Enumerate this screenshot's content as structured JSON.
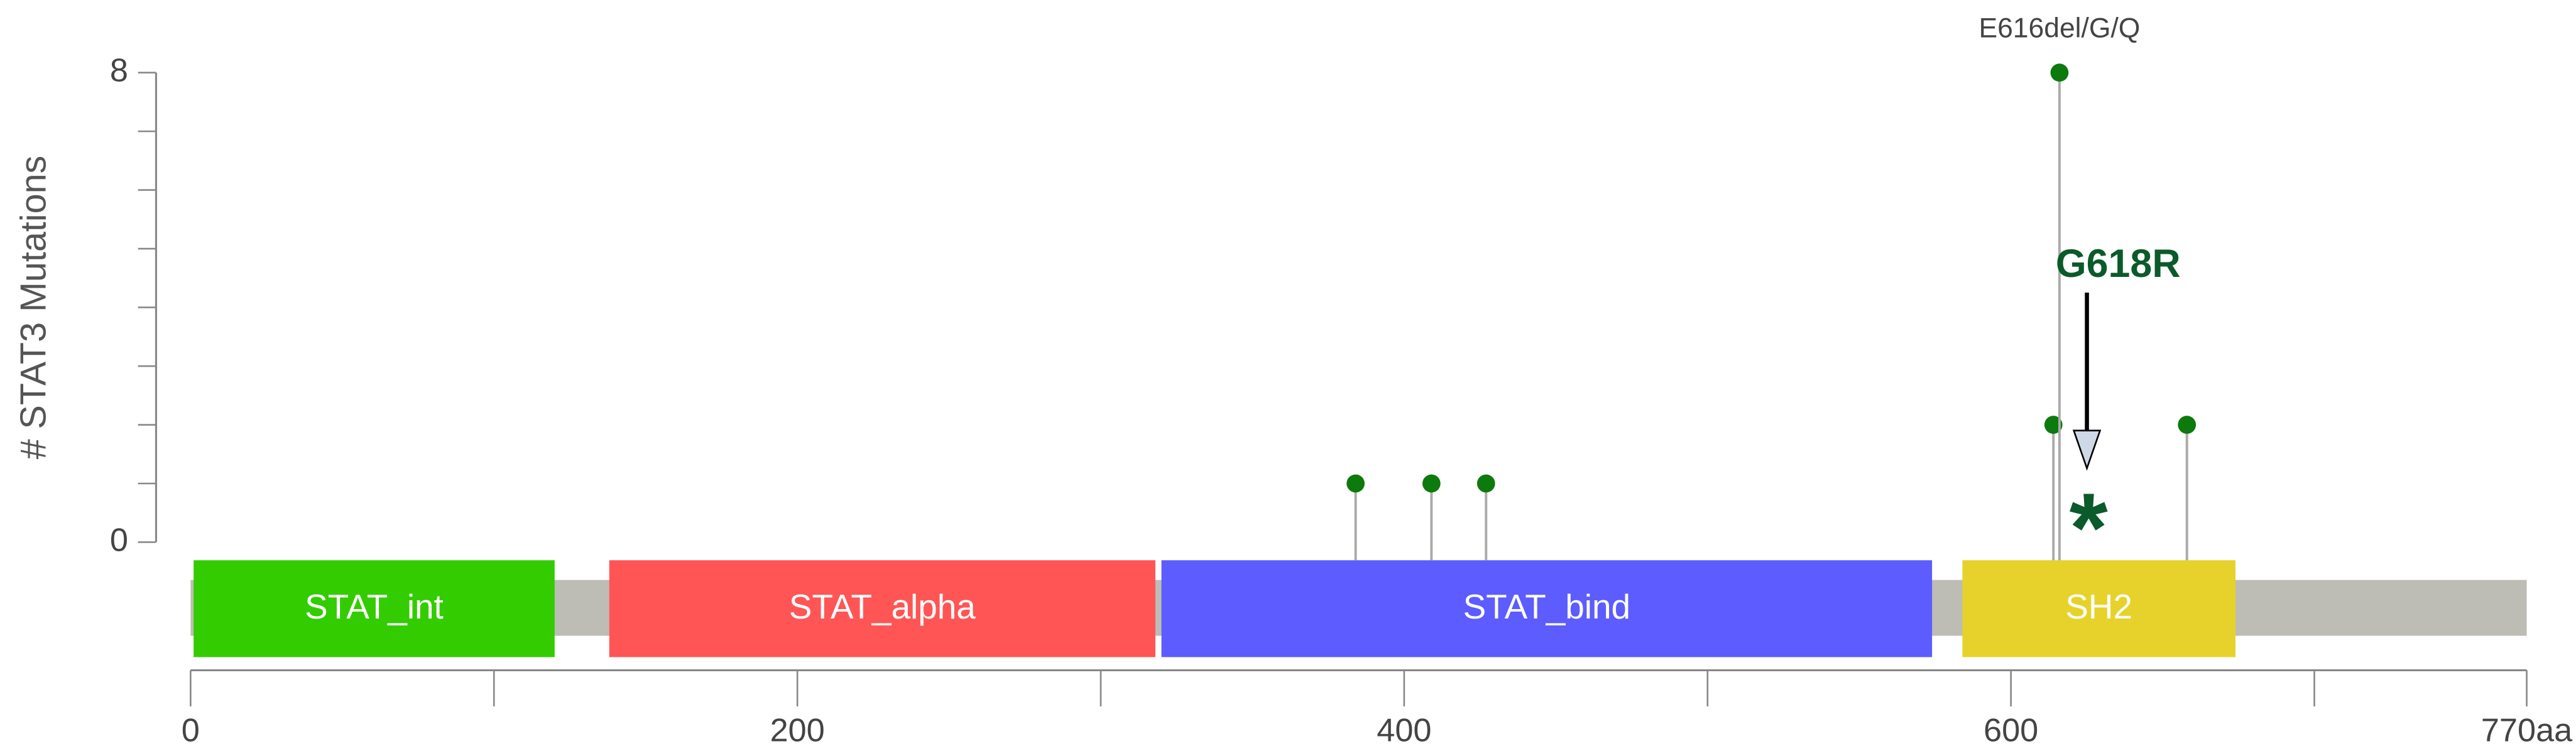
{
  "chart_data": {
    "type": "lollipop",
    "y_label": "# STAT3 Mutations",
    "xlim": [
      0,
      770
    ],
    "ylim": [
      0,
      8
    ],
    "xticks": [
      0,
      200,
      400,
      600,
      {
        "value": 770,
        "label": "770aa"
      }
    ],
    "x_minor_ticks": [
      100,
      300,
      500,
      700
    ],
    "yticks": [
      0,
      8
    ],
    "y_minor_ticks": [
      1,
      2,
      3,
      4,
      5,
      6,
      7
    ],
    "backbone_color": "#bdbdb5",
    "domains": [
      {
        "name": "STAT_int",
        "start": 1,
        "end": 120,
        "color": "#33cc00"
      },
      {
        "name": "STAT_alpha",
        "start": 138,
        "end": 318,
        "color": "#ff5555"
      },
      {
        "name": "STAT_bind",
        "start": 320,
        "end": 574,
        "color": "#5c5cff"
      },
      {
        "name": "SH2",
        "start": 584,
        "end": 674,
        "color": "#e6d22a"
      }
    ],
    "mutations": {
      "x": [
        384,
        409,
        427,
        614,
        616,
        658
      ],
      "values": [
        1,
        1,
        1,
        2,
        8,
        2
      ],
      "labels": [
        null,
        null,
        null,
        null,
        "E616del/G/Q",
        null
      ],
      "color": "#0c7a0c"
    },
    "annotation": {
      "text": "G618R",
      "marker": "*",
      "x": 618,
      "color": "#0b5a2a"
    }
  }
}
